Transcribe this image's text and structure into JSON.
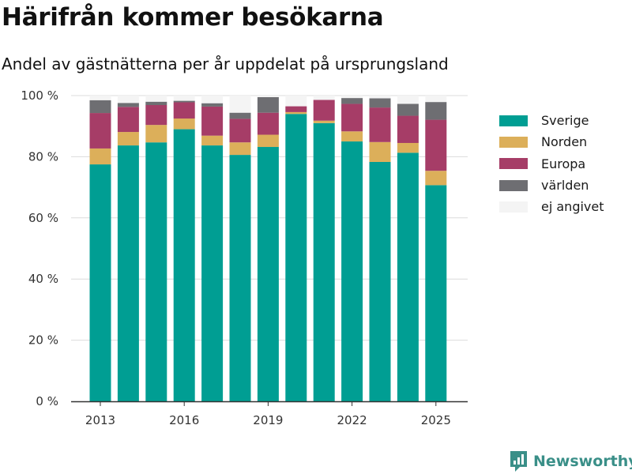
{
  "title": "Härifrån kommer besökarna",
  "subtitle": "Andel av gästnätterna per år uppdelat på ursprungsland",
  "brand": "Newsworthy",
  "chart_data": {
    "type": "bar",
    "stacked": true,
    "title": "Härifrån kommer besökarna",
    "subtitle": "Andel av gästnätterna per år uppdelat på ursprungsland",
    "xlabel": "",
    "ylabel": "",
    "categories": [
      2013,
      2014,
      2015,
      2016,
      2017,
      2018,
      2019,
      2020,
      2021,
      2022,
      2023,
      2024,
      2025
    ],
    "xticks": [
      "2013",
      "2016",
      "2019",
      "2022",
      "2025"
    ],
    "yticks": [
      "0 %",
      "20 %",
      "40 %",
      "60 %",
      "80 %",
      "100 %"
    ],
    "ylim": [
      0,
      100
    ],
    "grid": true,
    "legend_position": "right",
    "series": [
      {
        "name": "Sverige",
        "color": "#009e93",
        "values": [
          77.5,
          83.7,
          84.7,
          89.0,
          83.7,
          80.6,
          83.2,
          94.0,
          91.0,
          85.0,
          78.3,
          81.3,
          70.7
        ]
      },
      {
        "name": "Norden",
        "color": "#dcaf5a",
        "values": [
          5.2,
          4.4,
          5.7,
          3.5,
          3.2,
          4.1,
          4.0,
          0.6,
          0.8,
          3.3,
          6.5,
          3.2,
          4.7
        ]
      },
      {
        "name": "Europa",
        "color": "#a63d67",
        "values": [
          11.6,
          8.2,
          6.5,
          5.3,
          9.5,
          7.7,
          7.2,
          1.9,
          6.8,
          9.0,
          11.3,
          8.9,
          16.7
        ]
      },
      {
        "name": "världen",
        "color": "#6e6e72",
        "values": [
          4.2,
          1.3,
          1.1,
          0.5,
          1.1,
          2.0,
          5.1,
          0.0,
          0.0,
          1.9,
          3.0,
          3.9,
          5.8
        ]
      },
      {
        "name": "ej angivet",
        "color": "#f4f4f4",
        "values": [
          1.5,
          2.4,
          2.0,
          1.7,
          2.5,
          5.6,
          0.5,
          3.5,
          1.4,
          0.8,
          0.9,
          2.7,
          2.1
        ]
      }
    ]
  }
}
